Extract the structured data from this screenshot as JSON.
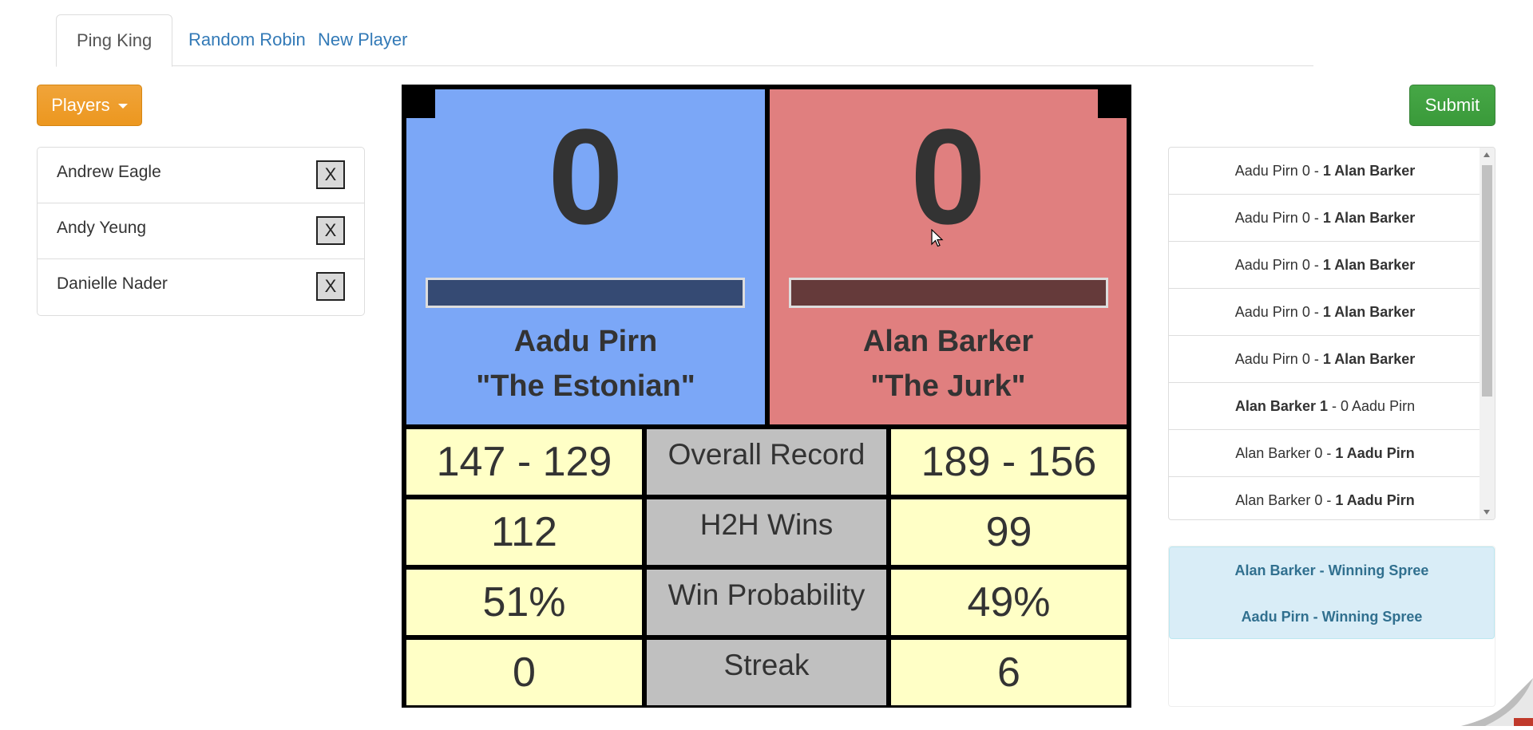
{
  "tabs": [
    {
      "label": "Ping King",
      "active": true
    },
    {
      "label": "Random Robin",
      "active": false
    },
    {
      "label": "New Player",
      "active": false
    }
  ],
  "players_button": {
    "label": "Players"
  },
  "players": [
    {
      "name": "Andrew Eagle",
      "remove_label": "X"
    },
    {
      "name": "Andy Yeung",
      "remove_label": "X"
    },
    {
      "name": "Danielle Nader",
      "remove_label": "X"
    }
  ],
  "scoreboard": {
    "left": {
      "score": "0",
      "name": "Aadu Pirn",
      "nickname": "\"The Estonian\"",
      "color": "#7ba7f7"
    },
    "right": {
      "score": "0",
      "name": "Alan Barker",
      "nickname": "\"The Jurk\"",
      "color": "#e07f7f"
    }
  },
  "stats": [
    {
      "label": "Overall Record",
      "left": "147 - 129",
      "right": "189 - 156"
    },
    {
      "label": "H2H Wins",
      "left": "112",
      "right": "99"
    },
    {
      "label": "Win Probability",
      "left": "51%",
      "right": "49%"
    },
    {
      "label": "Streak",
      "left": "0",
      "right": "6"
    }
  ],
  "submit_button": {
    "label": "Submit"
  },
  "matches": [
    {
      "p1": "Aadu Pirn",
      "s1": "0",
      "p2": "Alan Barker",
      "s2": "1",
      "winner": 2
    },
    {
      "p1": "Aadu Pirn",
      "s1": "0",
      "p2": "Alan Barker",
      "s2": "1",
      "winner": 2
    },
    {
      "p1": "Aadu Pirn",
      "s1": "0",
      "p2": "Alan Barker",
      "s2": "1",
      "winner": 2
    },
    {
      "p1": "Aadu Pirn",
      "s1": "0",
      "p2": "Alan Barker",
      "s2": "1",
      "winner": 2
    },
    {
      "p1": "Aadu Pirn",
      "s1": "0",
      "p2": "Alan Barker",
      "s2": "1",
      "winner": 2
    },
    {
      "p1": "Alan Barker",
      "s1": "1",
      "p2": "Aadu Pirn",
      "s2": "0",
      "winner": 1
    },
    {
      "p1": "Alan Barker",
      "s1": "0",
      "p2": "Aadu Pirn",
      "s2": "1",
      "winner": 2
    },
    {
      "p1": "Alan Barker",
      "s1": "0",
      "p2": "Aadu Pirn",
      "s2": "1",
      "winner": 2
    }
  ],
  "alerts": [
    {
      "text": "Alan Barker - Winning Spree"
    },
    {
      "text": "Aadu Pirn - Winning Spree"
    }
  ],
  "colors": {
    "tab_link": "#337ab7",
    "players_button": "#ec971f",
    "submit_button": "#3a9a3a",
    "stat_cell": "#ffffc6",
    "stat_label": "#c0c0c0",
    "alert_bg": "#d9edf7",
    "alert_text": "#31708f"
  }
}
